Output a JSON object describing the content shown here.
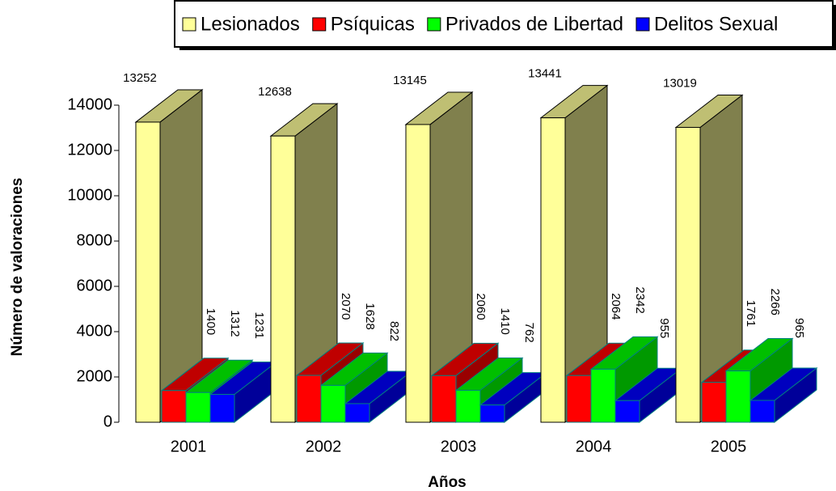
{
  "chart_data": {
    "type": "bar3d",
    "x_label": "Años",
    "y_label": "Número de valoraciones",
    "categories": [
      "2001",
      "2002",
      "2003",
      "2004",
      "2005"
    ],
    "series": [
      {
        "name": "Lesionados",
        "color": "#ffff99",
        "values": [
          13252,
          12638,
          13145,
          13441,
          13019
        ]
      },
      {
        "name": "Psíquicas",
        "color": "#ff0000",
        "values": [
          1400,
          2070,
          2060,
          2064,
          1761
        ]
      },
      {
        "name": "Privados de Libertad",
        "color": "#00ff00",
        "values": [
          1312,
          1628,
          1410,
          2342,
          2266
        ]
      },
      {
        "name": "Delitos Sexual",
        "color": "#0000ff",
        "values": [
          1231,
          822,
          762,
          955,
          965
        ]
      }
    ],
    "ylim": [
      0,
      14000
    ],
    "yticks": [
      0,
      2000,
      4000,
      6000,
      8000,
      10000,
      12000,
      14000
    ],
    "legend": "top"
  }
}
